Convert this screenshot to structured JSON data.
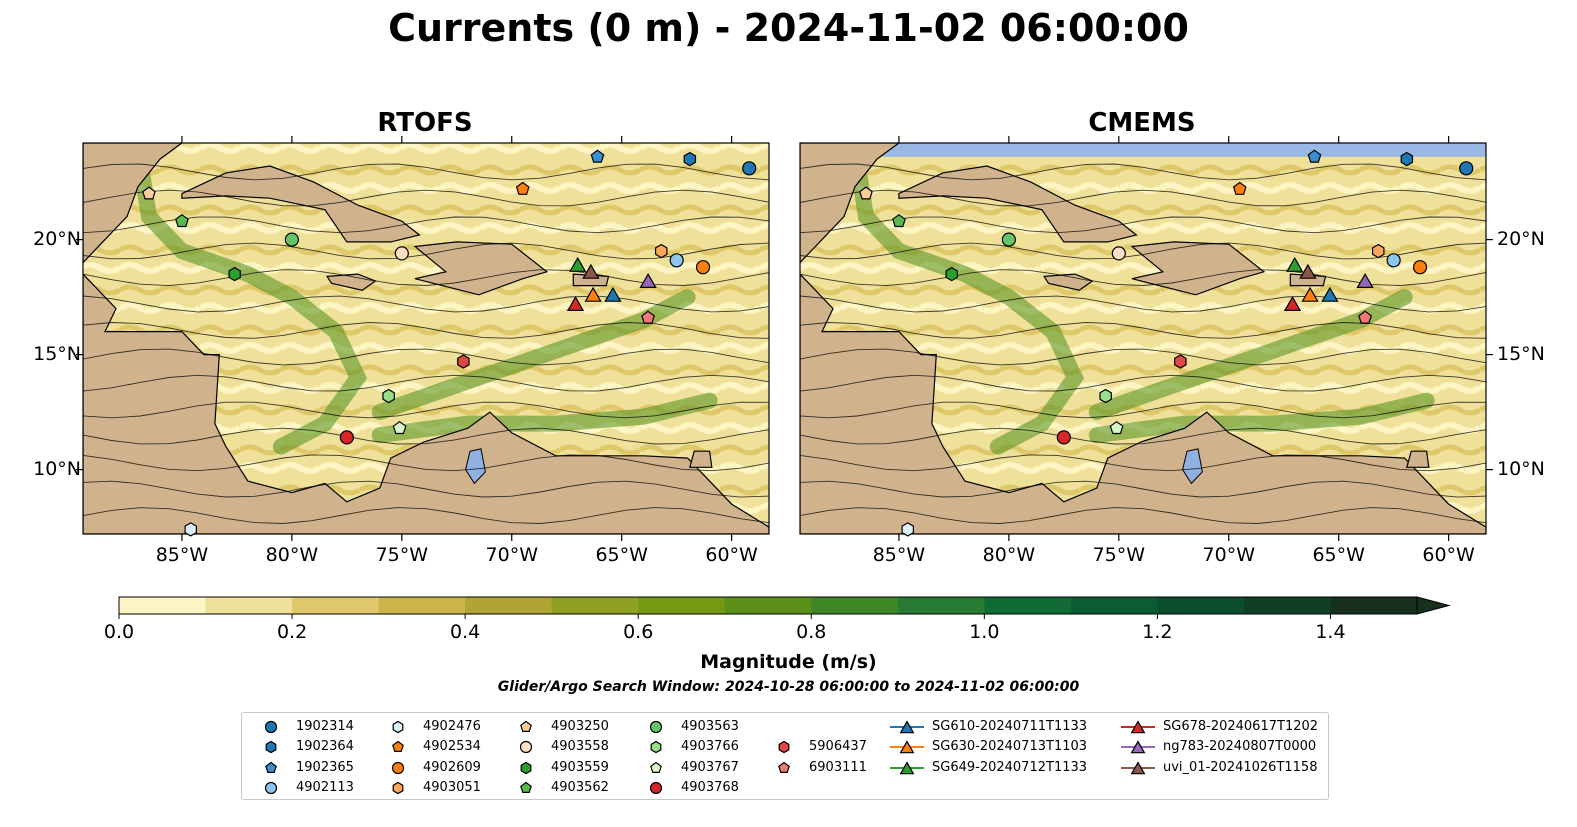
{
  "title": "Currents (0 m) - 2024-11-02 06:00:00",
  "panels": [
    {
      "title": "RTOFS"
    },
    {
      "title": "CMEMS"
    }
  ],
  "axes": {
    "xticks": [
      "85°W",
      "80°W",
      "75°W",
      "70°W",
      "65°W",
      "60°W"
    ],
    "yticks": [
      "20°N",
      "15°N",
      "10°N"
    ],
    "xlim": [
      -89.5,
      -58.3
    ],
    "ylim": [
      7.2,
      24.2
    ]
  },
  "colorbar": {
    "label": "Magnitude (m/s)",
    "ticks": [
      "0.0",
      "0.2",
      "0.4",
      "0.6",
      "0.8",
      "1.0",
      "1.2",
      "1.4"
    ],
    "range": [
      0,
      1.5
    ],
    "extend": "max",
    "colors": [
      "#fdf6c4",
      "#efe09a",
      "#dfc86a",
      "#cdb44a",
      "#b0a433",
      "#90a020",
      "#749a12",
      "#5a9018",
      "#3f8626",
      "#267a32",
      "#116b35",
      "#0c5c31",
      "#0b4e2d",
      "#103f26",
      "#16301d"
    ]
  },
  "search_window": "Glider/Argo Search Window: 2024-10-28 06:00:00 to 2024-11-02 06:00:00",
  "colors": {
    "land": "#d0b38c",
    "ocean_slow": "#fdf6c4",
    "lakes": "#8fb0e0",
    "rivers": "#9ab2d4",
    "track": "#000000"
  },
  "chart_data": {
    "type": "map",
    "platforms": [
      {
        "id": "1902314",
        "marker": "circle",
        "color": "#1f77b4",
        "lon": -59.2,
        "lat": 23.1
      },
      {
        "id": "1902364",
        "marker": "hexagon",
        "color": "#1f77b4",
        "lon": -61.9,
        "lat": 23.5
      },
      {
        "id": "1902365",
        "marker": "pentagon",
        "color": "#3a8fd0",
        "lon": -66.1,
        "lat": 23.6
      },
      {
        "id": "4902113",
        "marker": "circle",
        "color": "#8cc6ee",
        "lon": -62.5,
        "lat": 19.1
      },
      {
        "id": "4902476",
        "marker": "hexagon",
        "color": "#dceefa",
        "lon": -84.6,
        "lat": 7.4
      },
      {
        "id": "4902534",
        "marker": "pentagon",
        "color": "#ff7f0e",
        "lon": -69.5,
        "lat": 22.2
      },
      {
        "id": "4902609",
        "marker": "circle",
        "color": "#ff7f0e",
        "lon": -61.3,
        "lat": 18.8
      },
      {
        "id": "4903051",
        "marker": "hexagon",
        "color": "#ffa85a",
        "lon": -63.2,
        "lat": 19.5
      },
      {
        "id": "4903250",
        "marker": "pentagon",
        "color": "#ffcc99",
        "lon": -86.5,
        "lat": 22.0
      },
      {
        "id": "4903558",
        "marker": "circle",
        "color": "#ffe0c4",
        "lon": -75.0,
        "lat": 19.4
      },
      {
        "id": "4903559",
        "marker": "hexagon",
        "color": "#2ca02c",
        "lon": -82.6,
        "lat": 18.5
      },
      {
        "id": "4903562",
        "marker": "pentagon",
        "color": "#5cb84d",
        "lon": -85.0,
        "lat": 20.8
      },
      {
        "id": "4903563",
        "marker": "circle",
        "color": "#66c466",
        "lon": -80.0,
        "lat": 20.0
      },
      {
        "id": "4903766",
        "marker": "hexagon",
        "color": "#98df8a",
        "lon": -75.6,
        "lat": 13.2
      },
      {
        "id": "4903767",
        "marker": "pentagon",
        "color": "#d6f5c8",
        "lon": -75.1,
        "lat": 11.8
      },
      {
        "id": "4903768",
        "marker": "circle",
        "color": "#d62728",
        "lon": -77.5,
        "lat": 11.4
      },
      {
        "id": "5906437",
        "marker": "hexagon",
        "color": "#e04848",
        "lon": -72.2,
        "lat": 14.7
      },
      {
        "id": "6903111",
        "marker": "pentagon",
        "color": "#f07878",
        "lon": -63.8,
        "lat": 16.6
      },
      {
        "id": "SG610-20240711T1133",
        "marker": "triangle",
        "color": "#1f77b4",
        "lon": -65.4,
        "lat": 17.6
      },
      {
        "id": "SG630-20240713T1103",
        "marker": "triangle",
        "color": "#ff7f0e",
        "lon": -66.3,
        "lat": 17.6
      },
      {
        "id": "SG649-20240712T1133",
        "marker": "triangle",
        "color": "#2ca02c",
        "lon": -67.0,
        "lat": 18.9
      },
      {
        "id": "SG678-20240617T1202",
        "marker": "triangle",
        "color": "#d62728",
        "lon": -67.1,
        "lat": 17.2
      },
      {
        "id": "ng783-20240807T0000",
        "marker": "triangle",
        "color": "#9467bd",
        "lon": -63.8,
        "lat": 18.2
      },
      {
        "id": "uvi_01-20241026T1158",
        "marker": "triangle",
        "color": "#8c564b",
        "lon": -66.4,
        "lat": 18.6
      }
    ]
  }
}
